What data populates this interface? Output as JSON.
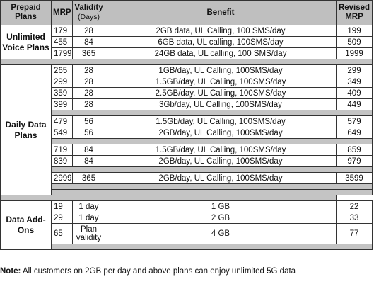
{
  "headers": {
    "plans": "Prepaid Plans",
    "mrp": "MRP",
    "validity": "Validity",
    "validity_unit": "(Days)",
    "benefit": "Benefit",
    "revised": "Revised MRP"
  },
  "categories": {
    "unlimited": "Unlimited Voice Plans",
    "daily": "Daily Data Plans",
    "addons": "Data Add-Ons"
  },
  "unlimited_rows": [
    {
      "mrp": "179",
      "validity": "28",
      "benefit": "2GB data, UL Calling, 100 SMS/day",
      "revised": "199"
    },
    {
      "mrp": "455",
      "validity": "84",
      "benefit": "6GB data, UL calling, 100SMS/day",
      "revised": "509"
    },
    {
      "mrp": "1799",
      "validity": "365",
      "benefit": "24GB data, UL calling, 100 SMS/day",
      "revised": "1999"
    }
  ],
  "daily_rows": [
    {
      "mrp": "265",
      "validity": "28",
      "benefit": "1GB/day, UL Calling, 100SMS/day",
      "revised": "299"
    },
    {
      "mrp": "299",
      "validity": "28",
      "benefit": "1.5GB/day, UL Calling, 100SMS/day",
      "revised": "349"
    },
    {
      "mrp": "359",
      "validity": "28",
      "benefit": "2.5GB/day, UL Calling, 100SMS/day",
      "revised": "409"
    },
    {
      "mrp": "399",
      "validity": "28",
      "benefit": "3Gb/day, UL Calling, 100SMS/day",
      "revised": "449"
    },
    {
      "mrp": "479",
      "validity": "56",
      "benefit": "1.5Gb/day, UL Calling, 100SMS/day",
      "revised": "579"
    },
    {
      "mrp": "549",
      "validity": "56",
      "benefit": "2GB/day, UL Calling, 100SMS/day",
      "revised": "649"
    },
    {
      "mrp": "719",
      "validity": "84",
      "benefit": "1.5GB/day, UL Calling, 100SMS/day",
      "revised": "859"
    },
    {
      "mrp": "839",
      "validity": "84",
      "benefit": "2GB/day, UL Calling, 100SMS/day",
      "revised": "979"
    },
    {
      "mrp": "2999",
      "validity": "365",
      "benefit": "2GB/day, UL Calling, 100SMS/day",
      "revised": "3599"
    }
  ],
  "addon_rows": [
    {
      "mrp": "19",
      "validity": "1 day",
      "benefit": "1 GB",
      "revised": "22"
    },
    {
      "mrp": "29",
      "validity": "1 day",
      "benefit": "2 GB",
      "revised": "33"
    },
    {
      "mrp": "65",
      "validity": "Plan validity",
      "benefit": "4 GB",
      "revised": "77"
    }
  ],
  "note": {
    "label": "Note:",
    "text": "All customers on 2GB per day and above plans can enjoy unlimited 5G data"
  }
}
